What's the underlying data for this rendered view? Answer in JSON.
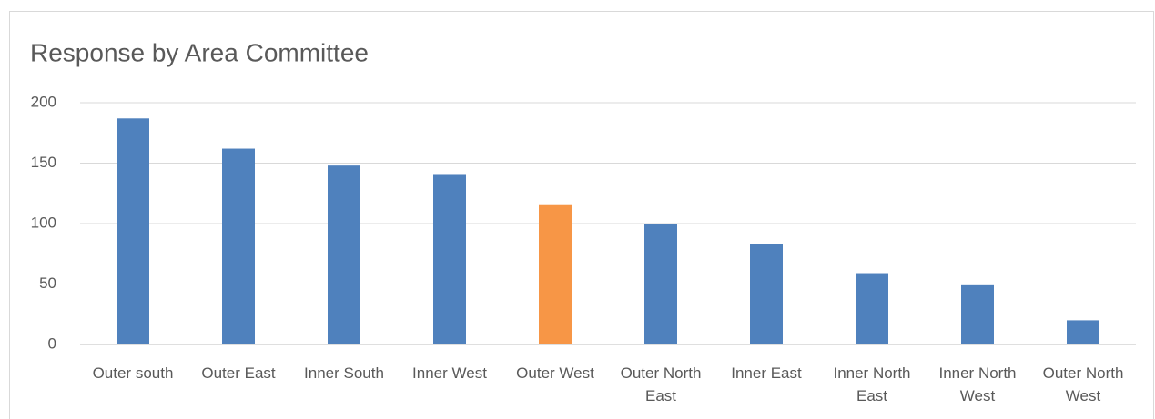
{
  "chart_data": {
    "type": "bar",
    "title": "Response by Area Committee",
    "categories": [
      "Outer south",
      "Outer East",
      "Inner South",
      "Inner West",
      "Outer West",
      "Outer North East",
      "Inner East",
      "Inner North East",
      "Inner North West",
      "Outer North West"
    ],
    "values": [
      187,
      162,
      148,
      141,
      116,
      100,
      83,
      59,
      49,
      20
    ],
    "colors": [
      "#4f81bd",
      "#4f81bd",
      "#4f81bd",
      "#4f81bd",
      "#f79646",
      "#4f81bd",
      "#4f81bd",
      "#4f81bd",
      "#4f81bd",
      "#4f81bd"
    ],
    "ylim": [
      0,
      200
    ],
    "yticks": [
      0,
      50,
      100,
      150,
      200
    ],
    "grid": true
  }
}
